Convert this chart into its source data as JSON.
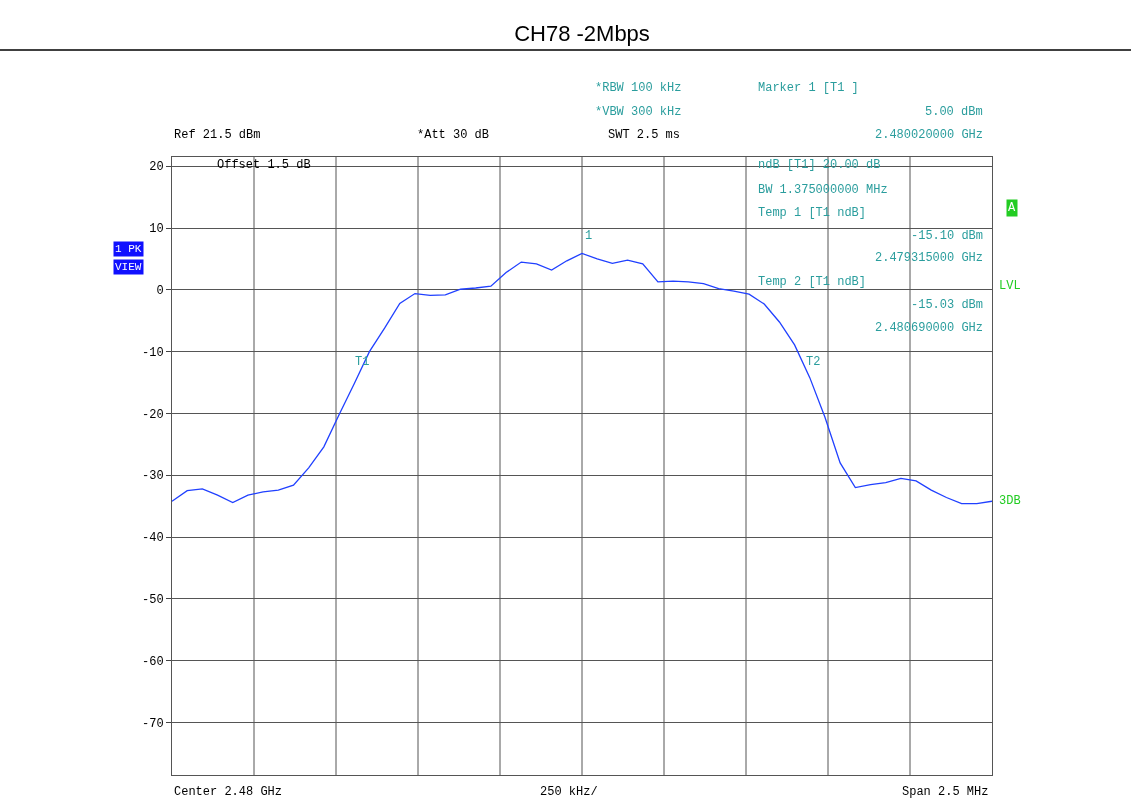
{
  "chart_data": {
    "type": "line",
    "title": "CH78 -2Mbps",
    "categories": [
      null,
      null,
      null,
      null,
      null,
      null,
      null,
      null,
      null,
      null,
      null,
      null,
      null,
      null,
      null,
      null,
      null,
      null,
      null,
      null,
      null,
      null,
      null,
      null,
      null,
      null,
      null,
      null,
      null,
      null,
      null,
      null,
      null,
      null,
      null,
      null,
      null,
      null,
      null,
      null,
      null,
      null,
      null,
      null,
      null,
      null,
      null,
      null,
      null,
      null,
      null,
      null,
      null,
      null,
      null
    ],
    "ylim": [
      -78.5,
      21.5
    ],
    "yticks": [
      20,
      10,
      0,
      -10,
      -20,
      -30,
      -40,
      -50,
      -60,
      -70
    ],
    "grid": true,
    "series": [
      {
        "color": "#2040ff",
        "values": [
          -34.2,
          -32.5,
          -32.2,
          -33.2,
          -34.4,
          -33.2,
          -32.7,
          -32.4,
          -31.6,
          -28.8,
          -25.4,
          -20.2,
          -15.2,
          -10.0,
          -6.2,
          -2.2,
          -0.6,
          -0.9,
          -0.8,
          0.1,
          0.3,
          0.6,
          2.8,
          4.5,
          4.2,
          3.2,
          4.7,
          5.9,
          5.0,
          4.3,
          4.8,
          4.2,
          1.3,
          1.4,
          1.3,
          1.0,
          0.2,
          -0.2,
          -0.7,
          -2.3,
          -5.2,
          -8.9,
          -14.2,
          -20.6,
          -28.0,
          -32.0,
          -31.5,
          -31.2,
          -30.5,
          -30.9,
          -32.4,
          -33.6,
          -34.6,
          -34.6,
          -34.2
        ]
      }
    ],
    "annotations": [
      "*RBW 100 kHz",
      "*VBW 300 kHz",
      "SWT 2.5 ms",
      "Ref 21.5 dBm",
      "*Att 30 dB",
      "Marker 1 [T1 ]",
      "5.00 dBm",
      "2.480020000 GHz",
      "Offset 1.5 dB",
      "ndB [T1] 20.00 dB",
      "BW 1.375000000 MHz",
      "Temp 1 [T1 ndB]",
      "-15.10 dBm",
      "2.479315000 GHz",
      "Temp 2 [T1 ndB]",
      "-15.03 dBm",
      "2.480690000 GHz",
      "1 PK",
      "VIEW",
      "A",
      "LVL",
      "3DB",
      "Center 2.48 GHz",
      "250 kHz/",
      "Span 2.5 MHz",
      "1",
      "T1",
      "T2"
    ]
  }
}
